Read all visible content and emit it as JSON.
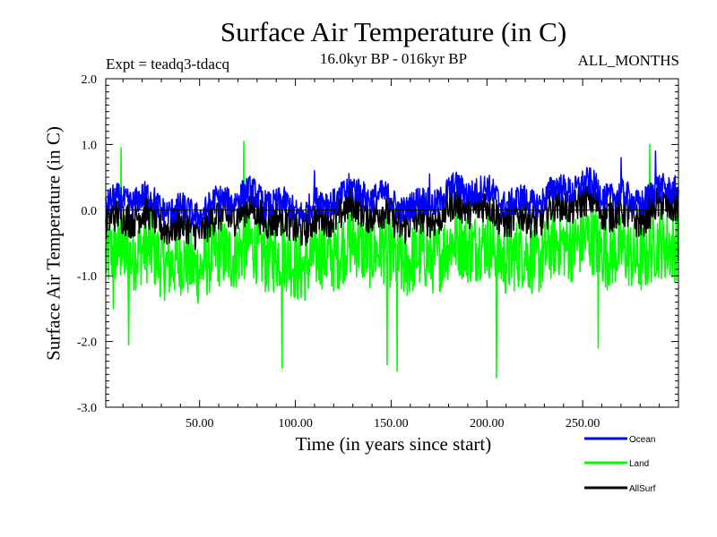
{
  "chart_data": {
    "type": "line",
    "title": "Surface Air Temperature (in C)",
    "experiment_label": "Expt = teadq3-tdacq",
    "period_label": "16.0kyr BP - 016kyr BP",
    "months_label": "ALL_MONTHS",
    "xlabel": "Time (in years since start)",
    "ylabel": "Surface Air Temperature (in C)",
    "xlim": [
      1,
      300
    ],
    "ylim": [
      -3.0,
      2.0
    ],
    "x_ticks": [
      50,
      100,
      150,
      200,
      250
    ],
    "x_tick_labels": [
      "50.00",
      "100.00",
      "150.00",
      "200.00",
      "250.00"
    ],
    "y_ticks": [
      -3.0,
      -2.0,
      -1.0,
      0.0,
      1.0,
      2.0
    ],
    "y_tick_labels": [
      "-3.0",
      "-2.0",
      "-1.0",
      "0.0",
      "1.0",
      "2.0"
    ],
    "zero_line": 0.0,
    "legend_position": "bottom-right, below plot",
    "series": [
      {
        "name": "Ocean",
        "color": "#0000ff",
        "min": -0.5,
        "max": 0.9,
        "mean_start": 0.05,
        "mean_end": 0.3
      },
      {
        "name": "Land",
        "color": "#00ff00",
        "min": -2.55,
        "max": 1.05,
        "mean_start": -0.75,
        "mean_end": -0.55
      },
      {
        "name": "AllSurf",
        "color": "#000000",
        "min": -0.85,
        "max": 0.75,
        "mean_start": -0.2,
        "mean_end": 0.05
      }
    ],
    "annotated_points": {
      "Land": [
        [
          5,
          -1.5
        ],
        [
          9,
          0.95
        ],
        [
          13,
          -2.05
        ],
        [
          73,
          1.05
        ],
        [
          93,
          -2.4
        ],
        [
          148,
          -2.35
        ],
        [
          153,
          -2.45
        ],
        [
          205,
          -2.55
        ],
        [
          258,
          -2.1
        ],
        [
          285,
          1.0
        ]
      ],
      "Ocean": [
        [
          60,
          -0.1
        ],
        [
          110,
          0.6
        ],
        [
          170,
          0.55
        ],
        [
          270,
          0.8
        ],
        [
          288,
          0.9
        ]
      ]
    }
  }
}
